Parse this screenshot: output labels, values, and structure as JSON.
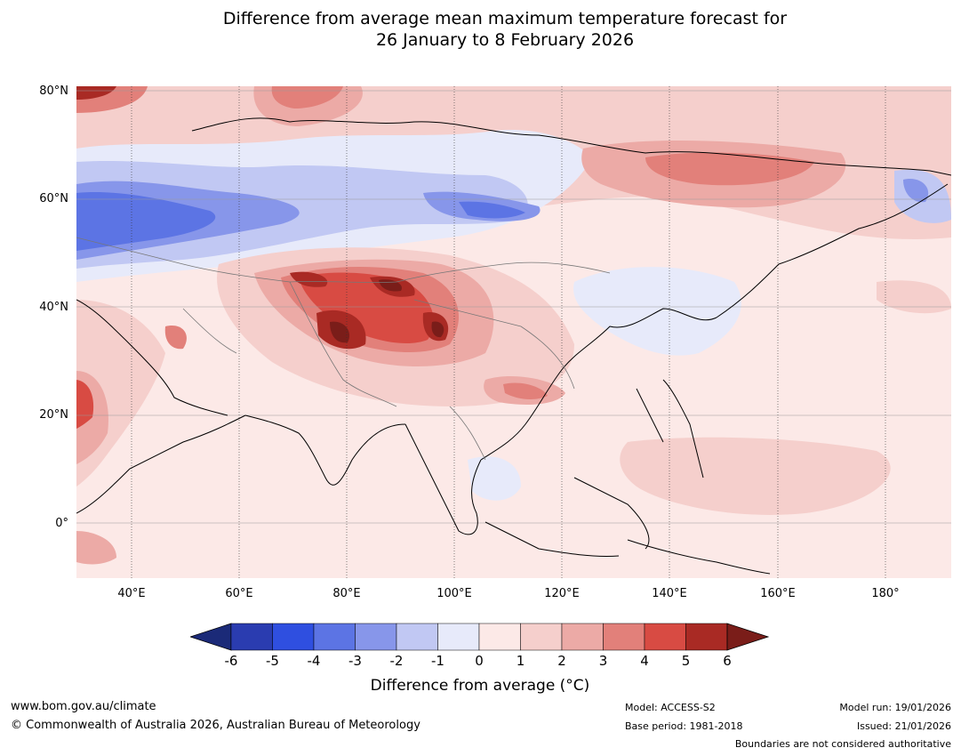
{
  "title": {
    "line1": "Difference from average mean maximum temperature forecast for",
    "line2": "26 January to 8 February 2026"
  },
  "map": {
    "lat_labels": [
      "80°N",
      "60°N",
      "40°N",
      "20°N",
      "0°"
    ],
    "lon_labels": [
      "40°E",
      "60°E",
      "80°E",
      "100°E",
      "120°E",
      "140°E",
      "160°E",
      "180°"
    ],
    "region": "Asia"
  },
  "colorbar": {
    "ticks": [
      "-6",
      "-5",
      "-4",
      "-3",
      "-2",
      "-1",
      "0",
      "1",
      "2",
      "3",
      "4",
      "5",
      "6"
    ],
    "colors": [
      "#1b2a78",
      "#2a3cb0",
      "#2f4fe0",
      "#5c74e4",
      "#8796ea",
      "#c1c8f3",
      "#e7eafa",
      "#fce9e7",
      "#f5cfcc",
      "#ecaaa6",
      "#e2807a",
      "#d84b43",
      "#a92a24",
      "#7a1d19"
    ],
    "label": "Difference from average (°C)"
  },
  "footer": {
    "website": "www.bom.gov.au/climate",
    "copyright": "© Commonwealth of Australia 2026, Australian Bureau of Meteorology",
    "model": "Model: ACCESS-S2",
    "base_period": "Base period: 1981-2018",
    "model_run": "Model run: 19/01/2026",
    "issued": "Issued: 21/01/2026",
    "disclaimer": "Boundaries are not considered authoritative"
  }
}
